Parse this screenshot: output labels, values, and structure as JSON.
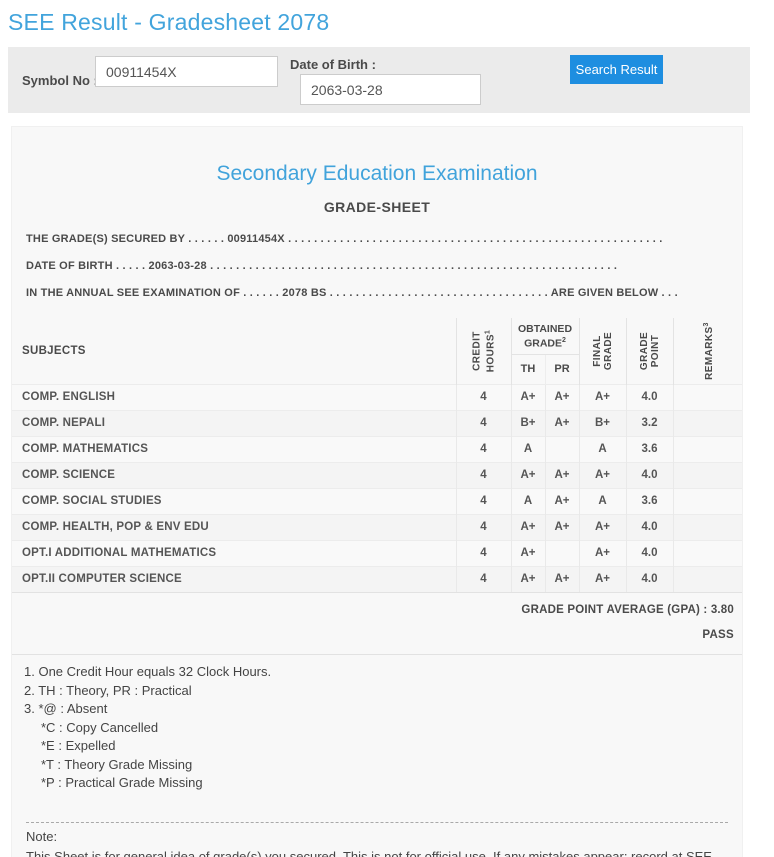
{
  "page": {
    "title": "SEE Result - Gradesheet 2078"
  },
  "search": {
    "symbol_label": "Symbol No :",
    "symbol_value": "00911454X",
    "dob_label": "Date of Birth :",
    "dob_value": "2063-03-28",
    "button_label": "Search Result"
  },
  "sheet": {
    "title": "Secondary Education Examination",
    "subtitle": "GRADE-SHEET",
    "line1": "THE GRADE(S) SECURED BY . . . . . . 00911454X . . . . . . . . . . . . . . . . . . . . . . . . . . . . . . . . . . . . . . . . . . . . . . . . . . . . . . . . . .",
    "line2": "DATE OF BIRTH . . . . . 2063-03-28 . . . . . . . . . . . . . . . . . . . . . . . . . . . . . . . . . . . . . . . . . . . . . . . . . . . . . . . . . . . . . . .",
    "line3": "IN THE ANNUAL SEE EXAMINATION OF . . . . . . 2078 BS . . . . . . . . . . . . . . . . . . . . . . . . . . . . . . . . . . ARE GIVEN BELOW . . ."
  },
  "table": {
    "headers": {
      "subjects": "SUBJECTS",
      "credit_hours_line1": "CREDIT",
      "credit_hours_line2": "HOURS",
      "credit_hours_sup": "1",
      "obtained_line1": "OBTAINED",
      "obtained_line2": "GRADE",
      "obtained_sup": "2",
      "th": "TH",
      "pr": "PR",
      "final_line1": "FINAL",
      "final_line2": "GRADE",
      "grade_point_line1": "GRADE",
      "grade_point_line2": "POINT",
      "remarks": "REMARKS",
      "remarks_sup": "3"
    },
    "rows": [
      {
        "subject": "COMP. ENGLISH",
        "credit": "4",
        "th": "A+",
        "pr": "A+",
        "final": "A+",
        "gp": "4.0",
        "remarks": ""
      },
      {
        "subject": "COMP. NEPALI",
        "credit": "4",
        "th": "B+",
        "pr": "A+",
        "final": "B+",
        "gp": "3.2",
        "remarks": ""
      },
      {
        "subject": "COMP. MATHEMATICS",
        "credit": "4",
        "th": "A",
        "pr": "",
        "final": "A",
        "gp": "3.6",
        "remarks": ""
      },
      {
        "subject": "COMP. SCIENCE",
        "credit": "4",
        "th": "A+",
        "pr": "A+",
        "final": "A+",
        "gp": "4.0",
        "remarks": ""
      },
      {
        "subject": "COMP. SOCIAL STUDIES",
        "credit": "4",
        "th": "A",
        "pr": "A+",
        "final": "A",
        "gp": "3.6",
        "remarks": ""
      },
      {
        "subject": "COMP. HEALTH, POP & ENV EDU",
        "credit": "4",
        "th": "A+",
        "pr": "A+",
        "final": "A+",
        "gp": "4.0",
        "remarks": ""
      },
      {
        "subject": "OPT.I ADDITIONAL MATHEMATICS",
        "credit": "4",
        "th": "A+",
        "pr": "",
        "final": "A+",
        "gp": "4.0",
        "remarks": ""
      },
      {
        "subject": "OPT.II COMPUTER SCIENCE",
        "credit": "4",
        "th": "A+",
        "pr": "A+",
        "final": "A+",
        "gp": "4.0",
        "remarks": ""
      }
    ],
    "gpa_text": "GRADE POINT AVERAGE (GPA) : 3.80",
    "result_text": "PASS"
  },
  "footnotes": [
    {
      "text": "1. One Credit Hour equals 32 Clock Hours.",
      "indent": false
    },
    {
      "text": "2. TH : Theory, PR : Practical",
      "indent": false
    },
    {
      "text": "3. *@ : Absent",
      "indent": false
    },
    {
      "text": "*C : Copy Cancelled",
      "indent": true
    },
    {
      "text": "*E : Expelled",
      "indent": true
    },
    {
      "text": "*T : Theory Grade Missing",
      "indent": true
    },
    {
      "text": "*P : Practical Grade Missing",
      "indent": true
    }
  ],
  "note": {
    "label": "Note:",
    "text": "This Sheet is for general idea of grade(s) you secured. This is not for official use. If any mistakes appear; record at SEE Board ledger will be referred."
  },
  "colors": {
    "accent_blue": "#42a4dc",
    "button_blue": "#1e8ee0",
    "panel_gray": "#ebebeb",
    "sheet_gray": "#f8f8f8",
    "text_gray": "#4a4a4a"
  }
}
